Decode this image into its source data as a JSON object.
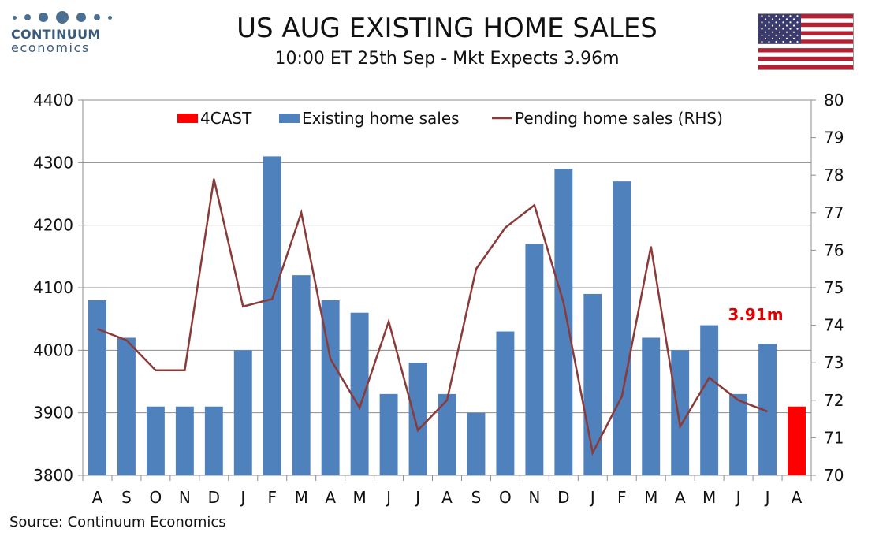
{
  "logo": {
    "name": "CONTINUUM",
    "sub": "economics"
  },
  "header": {
    "title": "US AUG EXISTING HOME SALES",
    "subtitle": "10:00 ET 25th Sep - Mkt Expects 3.96m"
  },
  "flag": {
    "icon": "us-flag-icon"
  },
  "source": "Source: Continuum Economics",
  "colors": {
    "bars": "#4f81bd",
    "forecast": "#ff0000",
    "line": "#8b3a3a",
    "annotation": "#e00000"
  },
  "chart_data": {
    "type": "bar",
    "categories": [
      "A",
      "S",
      "O",
      "N",
      "D",
      "J",
      "F",
      "M",
      "A",
      "M",
      "J",
      "J",
      "A",
      "S",
      "O",
      "N",
      "D",
      "J",
      "F",
      "M",
      "A",
      "M",
      "J",
      "J",
      "A"
    ],
    "series": [
      {
        "name": "4CAST",
        "type": "bar",
        "axis": "left",
        "values": [
          null,
          null,
          null,
          null,
          null,
          null,
          null,
          null,
          null,
          null,
          null,
          null,
          null,
          null,
          null,
          null,
          null,
          null,
          null,
          null,
          null,
          null,
          null,
          null,
          3910
        ]
      },
      {
        "name": "Existing home sales",
        "type": "bar",
        "axis": "left",
        "values": [
          4080,
          4020,
          3910,
          3910,
          3910,
          4000,
          4310,
          4120,
          4080,
          4060,
          3930,
          3980,
          3930,
          3900,
          4030,
          4170,
          4290,
          4090,
          4270,
          4020,
          4000,
          4040,
          3930,
          4010,
          null
        ]
      },
      {
        "name": "Pending home sales (RHS)",
        "type": "line",
        "axis": "right",
        "values": [
          73.9,
          73.6,
          72.8,
          72.8,
          77.9,
          74.5,
          74.7,
          77.0,
          73.1,
          71.8,
          74.1,
          71.2,
          72.0,
          75.5,
          76.6,
          77.2,
          74.6,
          70.6,
          72.1,
          76.1,
          71.3,
          72.6,
          72.0,
          71.7,
          null
        ]
      }
    ],
    "y_left": {
      "ylim": [
        3800,
        4400
      ],
      "ticks": [
        "3800",
        "3900",
        "4000",
        "4100",
        "4200",
        "4300",
        "4400"
      ]
    },
    "y_right": {
      "ylim": [
        70,
        80
      ],
      "ticks": [
        "70",
        "71",
        "72",
        "73",
        "74",
        "75",
        "76",
        "77",
        "78",
        "79",
        "80"
      ]
    },
    "annotation": {
      "text": "3.91m",
      "category_index": 24
    },
    "legend": {
      "placement": "top"
    },
    "grid": true
  }
}
